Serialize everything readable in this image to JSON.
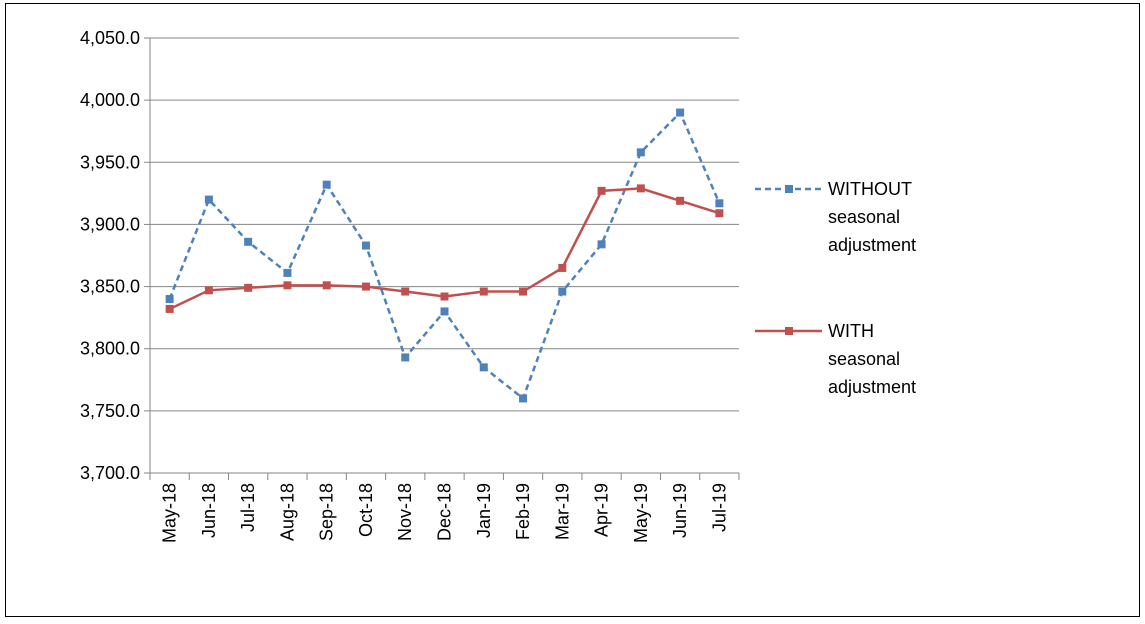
{
  "chart_data": {
    "type": "line",
    "categories": [
      "May-18",
      "Jun-18",
      "Jul-18",
      "Aug-18",
      "Sep-18",
      "Oct-18",
      "Nov-18",
      "Dec-18",
      "Jan-19",
      "Feb-19",
      "Mar-19",
      "Apr-19",
      "May-19",
      "Jun-19",
      "Jul-19"
    ],
    "series": [
      {
        "name": "WITHOUT seasonal adjustment",
        "color": "#4f81bd",
        "dashed": true,
        "values": [
          3840,
          3920,
          3886,
          3861,
          3932,
          3883,
          3793,
          3830,
          3785,
          3760,
          3846,
          3884,
          3958,
          3990,
          3917
        ]
      },
      {
        "name": "WITH seasonal adjustment",
        "color": "#c0504d",
        "dashed": false,
        "values": [
          3832,
          3847,
          3849,
          3851,
          3851,
          3850,
          3846,
          3842,
          3846,
          3846,
          3865,
          3927,
          3929,
          3919,
          3909
        ]
      }
    ],
    "ylim": [
      3700,
      4050
    ],
    "yticks": [
      {
        "value": 3700,
        "label": "3,700.0"
      },
      {
        "value": 3750,
        "label": "3,750.0"
      },
      {
        "value": 3800,
        "label": "3,800.0"
      },
      {
        "value": 3850,
        "label": "3,850.0"
      },
      {
        "value": 3900,
        "label": "3,900.0"
      },
      {
        "value": 3950,
        "label": "3,950.0"
      },
      {
        "value": 4000,
        "label": "4,000.0"
      },
      {
        "value": 4050,
        "label": "4,050.0"
      }
    ],
    "grid": true,
    "legend": "right"
  }
}
